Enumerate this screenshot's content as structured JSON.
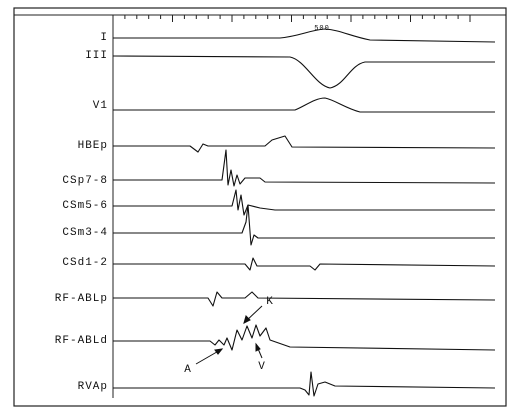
{
  "scale_label": "500",
  "channels": [
    "I",
    "III",
    "V1",
    "HBEp",
    "CSp7-8",
    "CSm5-6",
    "CSm3-4",
    "CSd1-2",
    "RF-ABLp",
    "RF-ABLd",
    "RVAp"
  ],
  "annotations": [
    "A",
    "K",
    "V"
  ]
}
